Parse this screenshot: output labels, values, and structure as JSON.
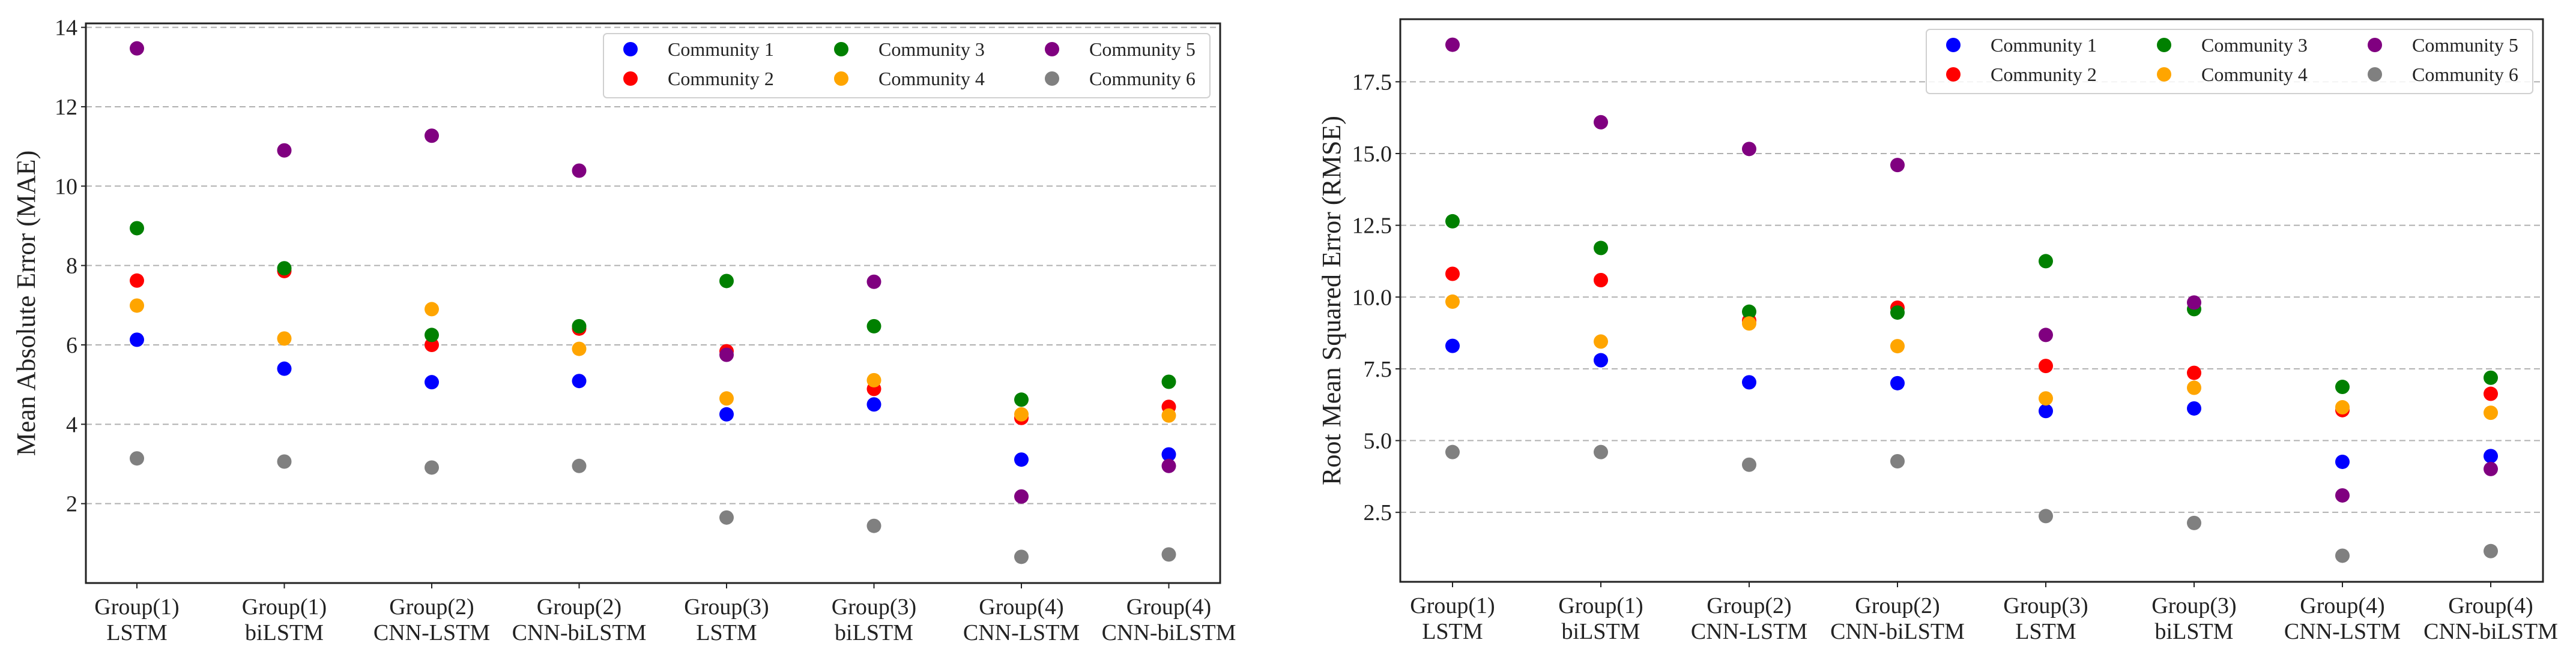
{
  "chart_data": [
    {
      "type": "scatter",
      "title": "",
      "xlabel": "",
      "ylabel": "Mean Absolute Error (MAE)",
      "ylim": [
        0,
        14.1
      ],
      "yticks": [
        2,
        4,
        6,
        8,
        10,
        12,
        14
      ],
      "ytick_labels": [
        "2",
        "4",
        "6",
        "8",
        "10",
        "12",
        "14"
      ],
      "grid": "y dashed",
      "legend_position": "top-right",
      "categories": [
        [
          "Group(1)",
          "LSTM"
        ],
        [
          "Group(1)",
          "biLSTM"
        ],
        [
          "Group(2)",
          "CNN-LSTM"
        ],
        [
          "Group(2)",
          "CNN-biLSTM"
        ],
        [
          "Group(3)",
          "LSTM"
        ],
        [
          "Group(3)",
          "biLSTM"
        ],
        [
          "Group(4)",
          "CNN-LSTM"
        ],
        [
          "Group(4)",
          "CNN-biLSTM"
        ]
      ],
      "series": [
        {
          "name": "Community 1",
          "color": "#0000ff",
          "values": [
            6.13,
            5.4,
            5.06,
            5.09,
            4.25,
            4.5,
            3.11,
            3.24
          ]
        },
        {
          "name": "Community 2",
          "color": "#ff0000",
          "values": [
            7.62,
            7.86,
            6.0,
            6.41,
            5.84,
            4.89,
            4.16,
            4.44
          ]
        },
        {
          "name": "Community 3",
          "color": "#008000",
          "values": [
            8.94,
            7.93,
            6.25,
            6.47,
            7.61,
            6.47,
            4.62,
            5.07
          ]
        },
        {
          "name": "Community 4",
          "color": "#ffa500",
          "values": [
            6.99,
            6.16,
            6.9,
            5.9,
            4.65,
            5.11,
            4.25,
            4.22
          ]
        },
        {
          "name": "Community 5",
          "color": "#800080",
          "values": [
            13.47,
            10.9,
            11.27,
            10.39,
            5.75,
            7.59,
            2.18,
            2.95
          ]
        },
        {
          "name": "Community 6",
          "color": "#808080",
          "values": [
            3.14,
            3.06,
            2.91,
            2.95,
            1.65,
            1.44,
            0.66,
            0.72
          ]
        }
      ]
    },
    {
      "type": "scatter",
      "title": "",
      "xlabel": "",
      "ylabel": "Root Mean Squared Error (RMSE)",
      "ylim": [
        0.08,
        19.68
      ],
      "yticks": [
        2.5,
        5.0,
        7.5,
        10.0,
        12.5,
        15.0,
        17.5
      ],
      "ytick_labels": [
        "2.5",
        "5.0",
        "7.5",
        "10.0",
        "12.5",
        "15.0",
        "17.5"
      ],
      "grid": "y dashed",
      "legend_position": "top-right",
      "categories": [
        [
          "Group(1)",
          "LSTM"
        ],
        [
          "Group(1)",
          "biLSTM"
        ],
        [
          "Group(2)",
          "CNN-LSTM"
        ],
        [
          "Group(2)",
          "CNN-biLSTM"
        ],
        [
          "Group(3)",
          "LSTM"
        ],
        [
          "Group(3)",
          "biLSTM"
        ],
        [
          "Group(4)",
          "CNN-LSTM"
        ],
        [
          "Group(4)",
          "CNN-biLSTM"
        ]
      ],
      "series": [
        {
          "name": "Community 1",
          "color": "#0000ff",
          "values": [
            8.3,
            7.8,
            7.03,
            7.0,
            6.03,
            6.12,
            4.26,
            4.46
          ]
        },
        {
          "name": "Community 2",
          "color": "#ff0000",
          "values": [
            10.81,
            10.59,
            9.18,
            9.63,
            7.6,
            7.36,
            6.06,
            6.63
          ]
        },
        {
          "name": "Community 3",
          "color": "#008000",
          "values": [
            12.64,
            11.71,
            9.49,
            9.46,
            11.25,
            9.58,
            6.87,
            7.19
          ]
        },
        {
          "name": "Community 4",
          "color": "#ffa500",
          "values": [
            9.84,
            8.45,
            9.08,
            8.29,
            6.47,
            6.84,
            6.16,
            5.97
          ]
        },
        {
          "name": "Community 5",
          "color": "#800080",
          "values": [
            18.79,
            16.09,
            15.16,
            14.6,
            8.68,
            9.81,
            3.09,
            4.01
          ]
        },
        {
          "name": "Community 6",
          "color": "#808080",
          "values": [
            4.6,
            4.6,
            4.16,
            4.28,
            2.37,
            2.13,
            0.99,
            1.15
          ]
        }
      ]
    }
  ]
}
